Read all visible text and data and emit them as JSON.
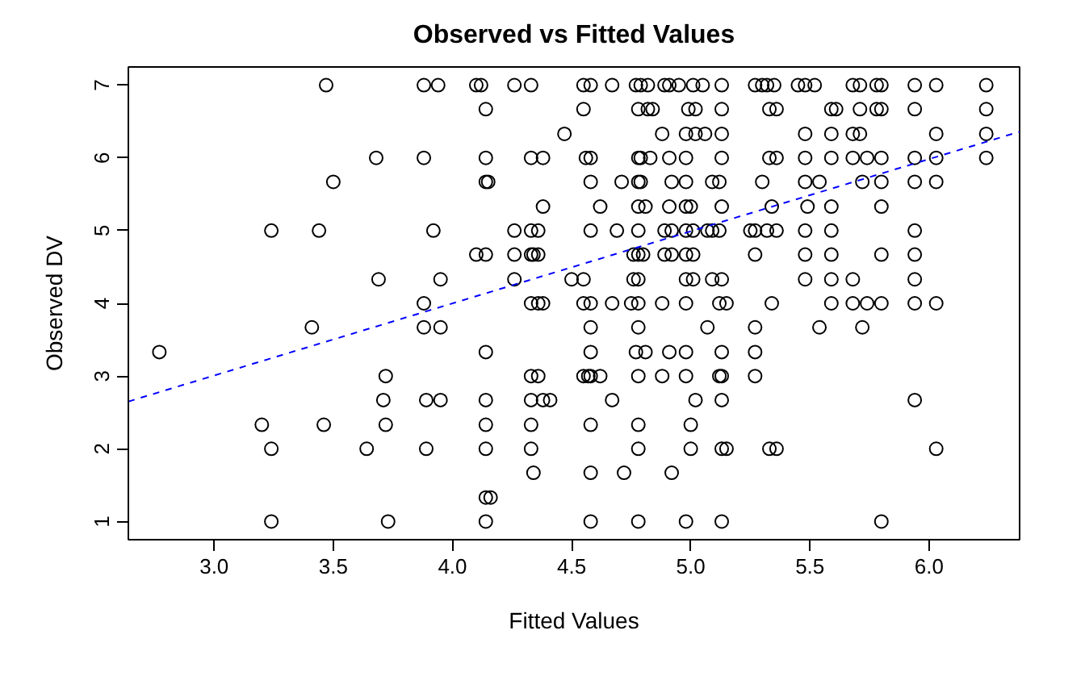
{
  "chart_data": {
    "type": "scatter",
    "title": "Observed vs Fitted Values",
    "xlabel": "Fitted Values",
    "ylabel": "Observed DV",
    "xlim": [
      2.64,
      6.38
    ],
    "ylim": [
      0.75,
      7.25
    ],
    "xticks": [
      {
        "value": 3,
        "label": "3.0"
      },
      {
        "value": 3.5,
        "label": "3.5"
      },
      {
        "value": 4,
        "label": "4.0"
      },
      {
        "value": 4.5,
        "label": "4.5"
      },
      {
        "value": 5,
        "label": "5.0"
      },
      {
        "value": 5.5,
        "label": "5.5"
      },
      {
        "value": 6,
        "label": "6.0"
      }
    ],
    "yticks": [
      1,
      2,
      3,
      4,
      5,
      6,
      7
    ],
    "grid": false,
    "series": [
      {
        "marker": "circle",
        "color": "#000000",
        "x": [
          3.47,
          3.88,
          3.94,
          4.1,
          4.12,
          4.26,
          4.33,
          4.55,
          4.58,
          4.67,
          4.77,
          4.79,
          4.82,
          4.89,
          4.91,
          4.95,
          5.01,
          5.05,
          5.13,
          5.27,
          5.3,
          5.32,
          5.35,
          5.45,
          5.48,
          5.52,
          5.68,
          5.71,
          5.78,
          5.8,
          5.94,
          6.03,
          6.24,
          4.14,
          4.55,
          4.78,
          4.82,
          4.84,
          4.99,
          5.02,
          5.13,
          5.33,
          5.36,
          5.59,
          5.61,
          5.71,
          5.78,
          5.8,
          5.94,
          6.24,
          4.47,
          4.88,
          4.98,
          5.02,
          5.06,
          5.13,
          5.48,
          5.59,
          5.68,
          5.71,
          6.03,
          6.24,
          3.68,
          3.88,
          4.14,
          4.33,
          4.38,
          4.56,
          4.58,
          4.78,
          4.79,
          4.83,
          4.91,
          4.98,
          5.13,
          5.33,
          5.36,
          5.48,
          5.59,
          5.68,
          5.74,
          5.8,
          5.94,
          6.03,
          6.24,
          3.5,
          4.14,
          4.15,
          4.58,
          4.71,
          4.78,
          4.79,
          4.92,
          4.98,
          5.09,
          5.12,
          5.3,
          5.48,
          5.54,
          5.72,
          5.8,
          5.94,
          6.03,
          4.38,
          4.62,
          4.78,
          4.81,
          4.91,
          4.98,
          5.0,
          5.13,
          5.34,
          5.49,
          5.59,
          5.8,
          3.24,
          3.44,
          3.92,
          4.26,
          4.33,
          4.36,
          4.58,
          4.69,
          4.78,
          4.89,
          4.92,
          4.98,
          5.01,
          5.07,
          5.09,
          5.12,
          5.25,
          5.27,
          5.32,
          5.36,
          5.48,
          5.59,
          5.94,
          4.1,
          4.14,
          4.26,
          4.33,
          4.34,
          4.36,
          4.76,
          4.78,
          4.8,
          4.89,
          4.92,
          4.98,
          5.01,
          5.27,
          5.48,
          5.59,
          5.8,
          5.94,
          3.69,
          3.95,
          4.26,
          4.5,
          4.55,
          4.76,
          4.78,
          4.98,
          5.01,
          5.09,
          5.13,
          5.48,
          5.59,
          5.68,
          5.94,
          3.88,
          4.33,
          4.36,
          4.38,
          4.55,
          4.58,
          4.67,
          4.75,
          4.78,
          4.88,
          4.98,
          5.12,
          5.15,
          5.34,
          5.59,
          5.68,
          5.74,
          5.8,
          5.94,
          6.03,
          3.41,
          3.88,
          3.95,
          4.58,
          4.78,
          5.07,
          5.27,
          5.54,
          5.72,
          2.77,
          4.14,
          4.58,
          4.77,
          4.81,
          4.91,
          4.98,
          5.13,
          5.27,
          3.72,
          4.33,
          4.36,
          4.55,
          4.57,
          4.58,
          4.62,
          4.78,
          4.88,
          4.98,
          5.12,
          5.13,
          5.27,
          3.71,
          3.89,
          3.95,
          4.14,
          4.33,
          4.38,
          4.41,
          4.67,
          5.02,
          5.13,
          5.94,
          3.2,
          3.46,
          3.72,
          4.14,
          4.33,
          4.58,
          4.78,
          5.0,
          3.24,
          3.64,
          3.89,
          4.14,
          4.33,
          4.78,
          5.0,
          5.13,
          5.15,
          5.33,
          5.36,
          6.03,
          4.34,
          4.58,
          4.72,
          4.92,
          4.14,
          4.16,
          3.24,
          3.73,
          4.14,
          4.58,
          4.78,
          4.98,
          5.13,
          5.8
        ],
        "values": [
          7,
          7,
          7,
          7,
          7,
          7,
          7,
          7,
          7,
          7,
          7,
          7,
          7,
          7,
          7,
          7,
          7,
          7,
          7,
          7,
          7,
          7,
          7,
          7,
          7,
          7,
          7,
          7,
          7,
          7,
          7,
          7,
          7,
          6.67,
          6.67,
          6.67,
          6.67,
          6.67,
          6.67,
          6.67,
          6.67,
          6.67,
          6.67,
          6.67,
          6.67,
          6.67,
          6.67,
          6.67,
          6.67,
          6.67,
          6.33,
          6.33,
          6.33,
          6.33,
          6.33,
          6.33,
          6.33,
          6.33,
          6.33,
          6.33,
          6.33,
          6.33,
          6,
          6,
          6,
          6,
          6,
          6,
          6,
          6,
          6,
          6,
          6,
          6,
          6,
          6,
          6,
          6,
          6,
          6,
          6,
          6,
          6,
          6,
          6,
          5.67,
          5.67,
          5.67,
          5.67,
          5.67,
          5.67,
          5.67,
          5.67,
          5.67,
          5.67,
          5.67,
          5.67,
          5.67,
          5.67,
          5.67,
          5.67,
          5.67,
          5.67,
          5.33,
          5.33,
          5.33,
          5.33,
          5.33,
          5.33,
          5.33,
          5.33,
          5.33,
          5.33,
          5.33,
          5.33,
          5,
          5,
          5,
          5,
          5,
          5,
          5,
          5,
          5,
          5,
          5,
          5,
          5,
          5,
          5,
          5,
          5,
          5,
          5,
          5,
          5,
          5,
          5,
          4.67,
          4.67,
          4.67,
          4.67,
          4.67,
          4.67,
          4.67,
          4.67,
          4.67,
          4.67,
          4.67,
          4.67,
          4.67,
          4.67,
          4.67,
          4.67,
          4.67,
          4.67,
          4.33,
          4.33,
          4.33,
          4.33,
          4.33,
          4.33,
          4.33,
          4.33,
          4.33,
          4.33,
          4.33,
          4.33,
          4.33,
          4.33,
          4.33,
          4,
          4,
          4,
          4,
          4,
          4,
          4,
          4,
          4,
          4,
          4,
          4,
          4,
          4,
          4,
          4,
          4,
          4,
          4,
          4,
          3.67,
          3.67,
          3.67,
          3.67,
          3.67,
          3.67,
          3.67,
          3.67,
          3.67,
          3.33,
          3.33,
          3.33,
          3.33,
          3.33,
          3.33,
          3.33,
          3.33,
          3.33,
          3,
          3,
          3,
          3,
          3,
          3,
          3,
          3,
          3,
          3,
          3,
          3,
          3,
          2.67,
          2.67,
          2.67,
          2.67,
          2.67,
          2.67,
          2.67,
          2.67,
          2.67,
          2.67,
          2.67,
          2.33,
          2.33,
          2.33,
          2.33,
          2.33,
          2.33,
          2.33,
          2.33,
          2,
          2,
          2,
          2,
          2,
          2,
          2,
          2,
          2,
          2,
          2,
          2,
          1.67,
          1.67,
          1.67,
          1.67,
          1.33,
          1.33,
          1,
          1,
          1,
          1,
          1,
          1,
          1,
          1
        ]
      },
      {
        "type": "line",
        "color": "#0000ff",
        "line_style": "dashed",
        "marker": "none",
        "x": [
          2.64,
          6.38
        ],
        "values": [
          2.65,
          6.36
        ]
      }
    ]
  }
}
